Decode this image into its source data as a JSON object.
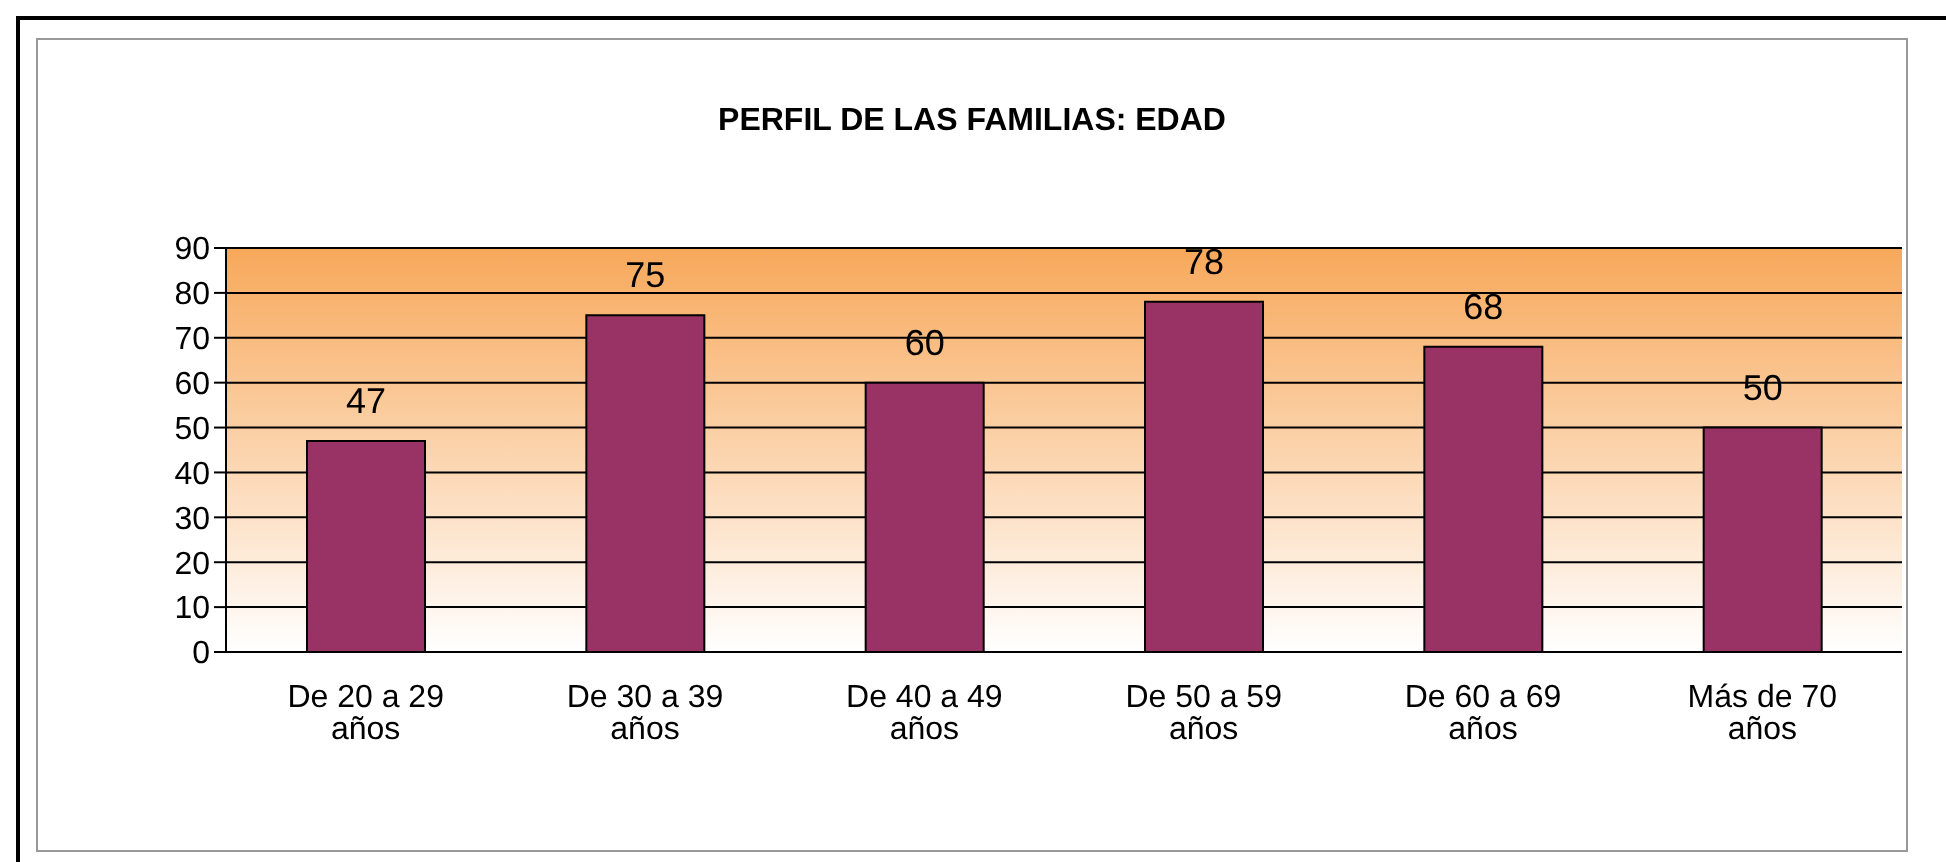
{
  "chart_data": {
    "type": "bar",
    "title": "PERFIL DE LAS FAMILIAS: EDAD",
    "categories": [
      "De 20 a 29 años",
      "De 30 a 39 años",
      "De 40 a 49 años",
      "De 50 a 59 años",
      "De 60 a 69 años",
      "Más de 70 años"
    ],
    "values": [
      47,
      75,
      60,
      78,
      68,
      50
    ],
    "color": "#993366",
    "ylim": [
      0,
      90
    ],
    "yticks": [
      0,
      10,
      20,
      30,
      40,
      50,
      60,
      70,
      80,
      90
    ],
    "grid": "y",
    "data_labels": true
  }
}
